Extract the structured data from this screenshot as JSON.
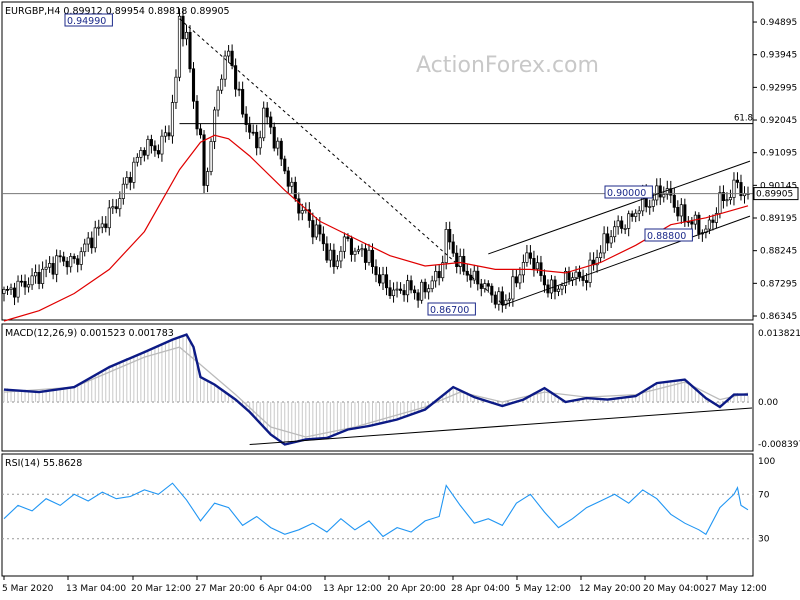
{
  "watermark": "ActionForex.com",
  "chart_data": [
    {
      "type": "candlestick",
      "title": "EURGBP,H4 0.89912 0.89954 0.89818 0.89905",
      "symbol": "EURGBP",
      "timeframe": "H4",
      "ohlc_last": [
        0.89912,
        0.89954,
        0.89818,
        0.89905
      ],
      "last_price_label": "0.89905",
      "ylim": [
        0.86345,
        0.95245
      ],
      "y_ticks": [
        0.94895,
        0.93945,
        0.92995,
        0.92045,
        0.91095,
        0.90145,
        0.89195,
        0.88245,
        0.87295,
        0.86345
      ],
      "y_tick_labels": [
        "0.94895",
        "0.93945",
        "0.92995",
        "0.92045",
        "0.91095",
        "0.90145",
        "0.89195",
        "0.88245",
        "0.87295",
        "0.86345"
      ],
      "x_labels": [
        "5 Mar 2020",
        "13 Mar 04:00",
        "20 Mar 12:00",
        "27 Mar 20:00",
        "6 Apr 04:00",
        "13 Apr 12:00",
        "20 Apr 20:00",
        "28 Apr 04:00",
        "5 May 12:00",
        "12 May 20:00",
        "20 May 04:00",
        "27 May 12:00"
      ],
      "annotations": {
        "high_label": "0.94990",
        "high_value": 0.9499,
        "low_label": "0.86700",
        "low_value": 0.867,
        "resistance_label": "0.90000",
        "resistance_value": 0.9,
        "support_label": "0.88800",
        "support_value": 0.888,
        "fib_label": "61.8",
        "fib_value": 0.9194,
        "horizontal_line_value": 0.89905
      },
      "close_path": [
        [
          0,
          0.87
        ],
        [
          4,
          0.872
        ],
        [
          8,
          0.874
        ],
        [
          12,
          0.877
        ],
        [
          16,
          0.88
        ],
        [
          20,
          0.879
        ],
        [
          24,
          0.885
        ],
        [
          28,
          0.89
        ],
        [
          32,
          0.896
        ],
        [
          36,
          0.905
        ],
        [
          40,
          0.913
        ],
        [
          44,
          0.912
        ],
        [
          47,
          0.918
        ],
        [
          49,
          0.932
        ],
        [
          50,
          0.9499
        ],
        [
          52,
          0.944
        ],
        [
          54,
          0.926
        ],
        [
          56,
          0.914
        ],
        [
          57,
          0.901
        ],
        [
          58,
          0.907
        ],
        [
          60,
          0.922
        ],
        [
          62,
          0.935
        ],
        [
          64,
          0.94
        ],
        [
          66,
          0.932
        ],
        [
          68,
          0.922
        ],
        [
          70,
          0.918
        ],
        [
          72,
          0.912
        ],
        [
          74,
          0.923
        ],
        [
          76,
          0.918
        ],
        [
          78,
          0.912
        ],
        [
          80,
          0.906
        ],
        [
          82,
          0.9
        ],
        [
          84,
          0.895
        ],
        [
          86,
          0.893
        ],
        [
          88,
          0.889
        ],
        [
          90,
          0.887
        ],
        [
          92,
          0.882
        ],
        [
          94,
          0.878
        ],
        [
          96,
          0.883
        ],
        [
          98,
          0.886
        ],
        [
          100,
          0.881
        ],
        [
          102,
          0.883
        ],
        [
          104,
          0.88
        ],
        [
          106,
          0.876
        ],
        [
          108,
          0.873
        ],
        [
          110,
          0.871
        ],
        [
          112,
          0.87
        ],
        [
          114,
          0.872
        ],
        [
          116,
          0.871
        ],
        [
          118,
          0.87
        ],
        [
          120,
          0.871
        ],
        [
          122,
          0.874
        ],
        [
          124,
          0.875
        ],
        [
          126,
          0.887
        ],
        [
          128,
          0.882
        ],
        [
          130,
          0.878
        ],
        [
          132,
          0.876
        ],
        [
          134,
          0.874
        ],
        [
          136,
          0.873
        ],
        [
          138,
          0.871
        ],
        [
          140,
          0.869
        ],
        [
          142,
          0.867
        ],
        [
          144,
          0.87
        ],
        [
          146,
          0.874
        ],
        [
          148,
          0.879
        ],
        [
          150,
          0.881
        ],
        [
          152,
          0.877
        ],
        [
          154,
          0.873
        ],
        [
          156,
          0.871
        ],
        [
          158,
          0.872
        ],
        [
          160,
          0.874
        ],
        [
          162,
          0.876
        ],
        [
          164,
          0.874
        ],
        [
          166,
          0.875
        ],
        [
          168,
          0.879
        ],
        [
          170,
          0.883
        ],
        [
          172,
          0.886
        ],
        [
          174,
          0.889
        ],
        [
          176,
          0.89
        ],
        [
          178,
          0.891
        ],
        [
          180,
          0.894
        ],
        [
          182,
          0.897
        ],
        [
          184,
          0.896
        ],
        [
          186,
          0.899
        ],
        [
          188,
          0.9
        ],
        [
          190,
          0.898
        ],
        [
          192,
          0.894
        ],
        [
          194,
          0.892
        ],
        [
          196,
          0.891
        ],
        [
          198,
          0.889
        ],
        [
          200,
          0.888
        ],
        [
          202,
          0.892
        ],
        [
          204,
          0.897
        ],
        [
          206,
          0.898
        ],
        [
          208,
          0.9
        ],
        [
          209,
          0.904
        ],
        [
          210,
          0.899
        ],
        [
          212,
          0.899
        ]
      ],
      "ma_path": [
        [
          0,
          0.862
        ],
        [
          10,
          0.865
        ],
        [
          20,
          0.87
        ],
        [
          30,
          0.877
        ],
        [
          40,
          0.888
        ],
        [
          50,
          0.906
        ],
        [
          56,
          0.914
        ],
        [
          60,
          0.916
        ],
        [
          64,
          0.915
        ],
        [
          70,
          0.91
        ],
        [
          80,
          0.9
        ],
        [
          90,
          0.891
        ],
        [
          100,
          0.886
        ],
        [
          110,
          0.881
        ],
        [
          120,
          0.878
        ],
        [
          130,
          0.879
        ],
        [
          140,
          0.877
        ],
        [
          150,
          0.877
        ],
        [
          160,
          0.876
        ],
        [
          170,
          0.879
        ],
        [
          180,
          0.884
        ],
        [
          190,
          0.89
        ],
        [
          200,
          0.892
        ],
        [
          212,
          0.8955
        ]
      ]
    },
    {
      "type": "line",
      "title": "MACD(12,26,9) 0.001523 0.001783",
      "ylim": [
        -0.008397,
        0.013821
      ],
      "y_tick_labels": [
        "0.013821",
        "0.00",
        "-0.008397"
      ],
      "series": [
        {
          "name": "MACD",
          "color": "#0c1a85",
          "points": [
            [
              0,
              0.0025
            ],
            [
              10,
              0.002
            ],
            [
              20,
              0.003
            ],
            [
              30,
              0.007
            ],
            [
              40,
              0.01
            ],
            [
              48,
              0.0125
            ],
            [
              52,
              0.0135
            ],
            [
              54,
              0.011
            ],
            [
              56,
              0.005
            ],
            [
              60,
              0.0035
            ],
            [
              66,
              0.0005
            ],
            [
              70,
              -0.002
            ],
            [
              76,
              -0.0065
            ],
            [
              80,
              -0.0085
            ],
            [
              86,
              -0.0075
            ],
            [
              92,
              -0.0072
            ],
            [
              98,
              -0.0055
            ],
            [
              104,
              -0.0048
            ],
            [
              112,
              -0.0035
            ],
            [
              120,
              -0.0015
            ],
            [
              128,
              0.003
            ],
            [
              134,
              0.001
            ],
            [
              142,
              -0.0008
            ],
            [
              148,
              0.0005
            ],
            [
              154,
              0.0028
            ],
            [
              160,
              0.0
            ],
            [
              166,
              0.0008
            ],
            [
              172,
              0.0005
            ],
            [
              180,
              0.0012
            ],
            [
              186,
              0.0038
            ],
            [
              194,
              0.0045
            ],
            [
              200,
              0.0008
            ],
            [
              204,
              -0.001
            ],
            [
              208,
              0.0015
            ],
            [
              212,
              0.0015
            ]
          ]
        },
        {
          "name": "Signal",
          "color": "#bbbbbb",
          "points": [
            [
              0,
              0.002
            ],
            [
              20,
              0.003
            ],
            [
              40,
              0.009
            ],
            [
              50,
              0.011
            ],
            [
              56,
              0.0075
            ],
            [
              66,
              0.0015
            ],
            [
              76,
              -0.005
            ],
            [
              86,
              -0.007
            ],
            [
              100,
              -0.005
            ],
            [
              120,
              -0.001
            ],
            [
              130,
              0.002
            ],
            [
              142,
              0.0
            ],
            [
              154,
              0.002
            ],
            [
              166,
              0.001
            ],
            [
              180,
              0.0015
            ],
            [
              194,
              0.004
            ],
            [
              204,
              0.0005
            ],
            [
              212,
              0.0018
            ]
          ]
        }
      ],
      "trendline": [
        [
          70,
          -0.0085
        ],
        [
          212,
          -0.0012
        ]
      ]
    },
    {
      "type": "line",
      "title": "RSI(14) 55.8628",
      "ylim": [
        0,
        100
      ],
      "y_ticks": [
        100,
        70,
        30
      ],
      "y_tick_labels": [
        "100",
        "70",
        "30"
      ],
      "series": [
        {
          "name": "RSI",
          "color": "#2196f3",
          "points": [
            [
              0,
              48
            ],
            [
              4,
              60
            ],
            [
              8,
              55
            ],
            [
              12,
              66
            ],
            [
              16,
              60
            ],
            [
              20,
              70
            ],
            [
              24,
              64
            ],
            [
              28,
              72
            ],
            [
              32,
              66
            ],
            [
              36,
              68
            ],
            [
              40,
              74
            ],
            [
              44,
              70
            ],
            [
              48,
              80
            ],
            [
              52,
              65
            ],
            [
              56,
              46
            ],
            [
              60,
              62
            ],
            [
              64,
              58
            ],
            [
              68,
              42
            ],
            [
              72,
              50
            ],
            [
              76,
              40
            ],
            [
              80,
              34
            ],
            [
              84,
              38
            ],
            [
              88,
              44
            ],
            [
              92,
              36
            ],
            [
              96,
              48
            ],
            [
              100,
              38
            ],
            [
              104,
              46
            ],
            [
              108,
              32
            ],
            [
              112,
              40
            ],
            [
              116,
              36
            ],
            [
              120,
              46
            ],
            [
              124,
              50
            ],
            [
              126,
              78
            ],
            [
              130,
              60
            ],
            [
              134,
              44
            ],
            [
              138,
              48
            ],
            [
              142,
              42
            ],
            [
              146,
              62
            ],
            [
              150,
              70
            ],
            [
              154,
              54
            ],
            [
              158,
              40
            ],
            [
              162,
              48
            ],
            [
              166,
              58
            ],
            [
              170,
              64
            ],
            [
              174,
              70
            ],
            [
              178,
              62
            ],
            [
              182,
              74
            ],
            [
              186,
              66
            ],
            [
              190,
              52
            ],
            [
              194,
              44
            ],
            [
              198,
              38
            ],
            [
              200,
              34
            ],
            [
              204,
              58
            ],
            [
              206,
              64
            ],
            [
              208,
              70
            ],
            [
              209,
              76
            ],
            [
              210,
              60
            ],
            [
              212,
              56
            ]
          ]
        }
      ]
    }
  ]
}
